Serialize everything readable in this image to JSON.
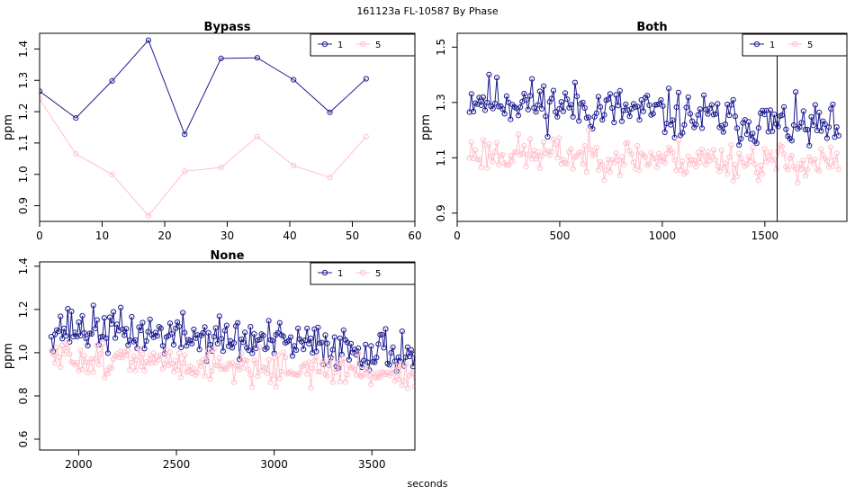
{
  "figure": {
    "title": "161123a    FL-10587   By Phase",
    "xlabel_common": "seconds"
  },
  "colors": {
    "series1": "#1c1c8f",
    "series5": "#ffc0cb"
  },
  "chart_data": [
    {
      "type": "line",
      "title": "Bypass",
      "ylabel": "ppm",
      "xlim": [
        0,
        60
      ],
      "ylim": [
        0.85,
        1.45
      ],
      "xticks": [
        0,
        10,
        20,
        30,
        40,
        50,
        60
      ],
      "xtick_labels": [
        "0",
        "10",
        "20",
        "30",
        "40",
        "50",
        "60"
      ],
      "yticks": [
        0.9,
        1.0,
        1.1,
        1.2,
        1.3,
        1.4
      ],
      "ytick_labels": [
        "0.9",
        "1.0",
        "1.1",
        "1.2",
        "1.3",
        "1.4"
      ],
      "legend": {
        "position": "top-right",
        "entries": [
          "1",
          "5"
        ]
      },
      "series": [
        {
          "name": "1",
          "x": [
            0,
            5.8,
            11.6,
            17.4,
            23.2,
            29.0,
            34.8,
            40.6,
            46.4,
            52.2
          ],
          "y": [
            1.265,
            1.18,
            1.298,
            1.428,
            1.128,
            1.37,
            1.372,
            1.302,
            1.198,
            1.305
          ]
        },
        {
          "name": "5",
          "x": [
            0,
            5.8,
            11.6,
            17.4,
            23.2,
            29.0,
            34.8,
            40.6,
            46.4,
            52.2
          ],
          "y": [
            1.24,
            1.065,
            1.0,
            0.868,
            1.01,
            1.022,
            1.12,
            1.028,
            0.99,
            1.12
          ]
        }
      ]
    },
    {
      "type": "line",
      "title": "Both",
      "ylabel": "ppm",
      "xlim": [
        0,
        1900
      ],
      "ylim": [
        0.87,
        1.55
      ],
      "xticks": [
        0,
        500,
        1000,
        1500
      ],
      "xtick_labels": [
        "0",
        "500",
        "1000",
        "1500"
      ],
      "yticks": [
        0.9,
        1.1,
        1.3,
        1.5
      ],
      "ytick_labels": [
        "0.9",
        "1.1",
        "1.3",
        "1.5"
      ],
      "vline_x": 1560,
      "legend": {
        "position": "top-right",
        "entries": [
          "1",
          "5"
        ]
      },
      "series": [
        {
          "name": "1",
          "x_range": [
            60,
            1860
          ],
          "n": 190,
          "level": [
            1.32,
            1.2
          ],
          "spread": 0.13,
          "seed": 11
        },
        {
          "name": "5",
          "x_range": [
            60,
            1860
          ],
          "n": 190,
          "level": [
            1.12,
            1.08
          ],
          "spread": 0.1,
          "seed": 23
        }
      ]
    },
    {
      "type": "line",
      "title": "None",
      "ylabel": "ppm",
      "xlim": [
        1800,
        3720
      ],
      "ylim": [
        0.55,
        1.42
      ],
      "xticks": [
        2000,
        2500,
        3000,
        3500
      ],
      "xtick_labels": [
        "2000",
        "2500",
        "3000",
        "3500"
      ],
      "yticks": [
        0.6,
        0.8,
        1.0,
        1.2,
        1.4
      ],
      "ytick_labels": [
        "0.6",
        "0.8",
        "1.0",
        "1.2",
        "1.4"
      ],
      "legend": {
        "position": "top-right",
        "entries": [
          "1",
          "5"
        ]
      },
      "series": [
        {
          "name": "1",
          "x_range": [
            1860,
            3720
          ],
          "n": 200,
          "level": [
            1.12,
            1.0
          ],
          "spread": 0.15,
          "seed": 37
        },
        {
          "name": "5",
          "x_range": [
            1860,
            3720
          ],
          "n": 200,
          "level": [
            0.98,
            0.9
          ],
          "spread": 0.11,
          "seed": 51
        }
      ]
    }
  ]
}
